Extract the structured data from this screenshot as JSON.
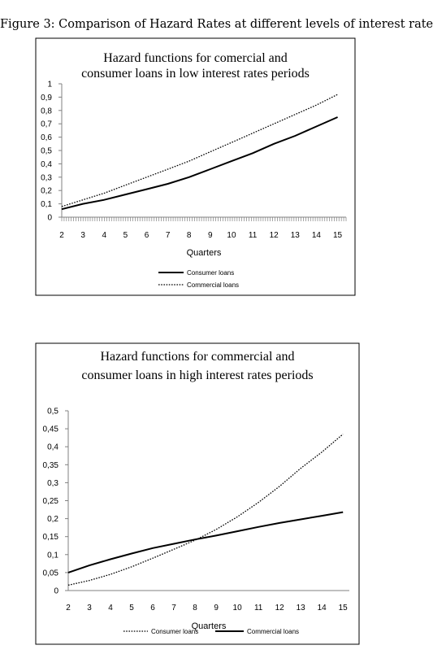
{
  "figure": {
    "caption": "Figure 3: Comparison of Hazard Rates at different levels of interest rates"
  },
  "chart_data": [
    {
      "type": "line",
      "title": [
        "Hazard  functions for comercial and",
        "consumer loans in low interest rates periods"
      ],
      "xlabel": "Quarters",
      "ylabel": "",
      "x": [
        2,
        3,
        4,
        5,
        6,
        7,
        8,
        9,
        10,
        11,
        12,
        13,
        14,
        15
      ],
      "xlim": [
        2,
        15.4
      ],
      "ylim": [
        0,
        1
      ],
      "yticks": [
        "0",
        "0,1",
        "0,2",
        "0,3",
        "0,4",
        "0,5",
        "0,6",
        "0,7",
        "0,8",
        "0,9",
        "1"
      ],
      "ytick_values": [
        0,
        0.1,
        0.2,
        0.3,
        0.4,
        0.5,
        0.6,
        0.7,
        0.8,
        0.9,
        1
      ],
      "xticks": [
        "2",
        "3",
        "4",
        "5",
        "6",
        "7",
        "8",
        "9",
        "10",
        "11",
        "12",
        "13",
        "14",
        "15"
      ],
      "grid": false,
      "legend": "bottom",
      "series": [
        {
          "name": "Consumer loans",
          "style": "solid",
          "color": "#000000",
          "values": [
            0.06,
            0.1,
            0.13,
            0.17,
            0.21,
            0.25,
            0.3,
            0.36,
            0.42,
            0.48,
            0.55,
            0.61,
            0.68,
            0.75
          ]
        },
        {
          "name": "Commercial loans",
          "style": "dotted",
          "color": "#000000",
          "values": [
            0.08,
            0.13,
            0.18,
            0.24,
            0.3,
            0.36,
            0.42,
            0.49,
            0.56,
            0.63,
            0.7,
            0.77,
            0.84,
            0.92
          ]
        }
      ]
    },
    {
      "type": "line",
      "title": [
        "Hazard functions for commercial and",
        "consumer loans in high interest rates periods"
      ],
      "xlabel": "Quarters",
      "ylabel": "",
      "x": [
        2,
        3,
        4,
        5,
        6,
        7,
        8,
        9,
        10,
        11,
        12,
        13,
        14,
        15
      ],
      "xlim": [
        2,
        15.3
      ],
      "ylim": [
        0,
        0.5
      ],
      "yticks": [
        "0",
        "0,05",
        "0,1",
        "0,15",
        "0,2",
        "0,25",
        "0,3",
        "0,35",
        "0,4",
        "0,45",
        "0,5"
      ],
      "ytick_values": [
        0,
        0.05,
        0.1,
        0.15,
        0.2,
        0.25,
        0.3,
        0.35,
        0.4,
        0.45,
        0.5
      ],
      "xticks": [
        "2",
        "3",
        "4",
        "5",
        "6",
        "7",
        "8",
        "9",
        "10",
        "11",
        "12",
        "13",
        "14",
        "15"
      ],
      "grid": false,
      "legend": "bottom",
      "series": [
        {
          "name": "Consumer loans",
          "style": "dotted",
          "color": "#000000",
          "values": [
            0.015,
            0.028,
            0.045,
            0.066,
            0.09,
            0.115,
            0.14,
            0.17,
            0.205,
            0.245,
            0.29,
            0.34,
            0.385,
            0.435
          ]
        },
        {
          "name": "Commercial loans",
          "style": "solid",
          "color": "#000000",
          "values": [
            0.05,
            0.07,
            0.087,
            0.103,
            0.118,
            0.13,
            0.142,
            0.153,
            0.165,
            0.177,
            0.188,
            0.198,
            0.208,
            0.218
          ]
        }
      ]
    }
  ]
}
